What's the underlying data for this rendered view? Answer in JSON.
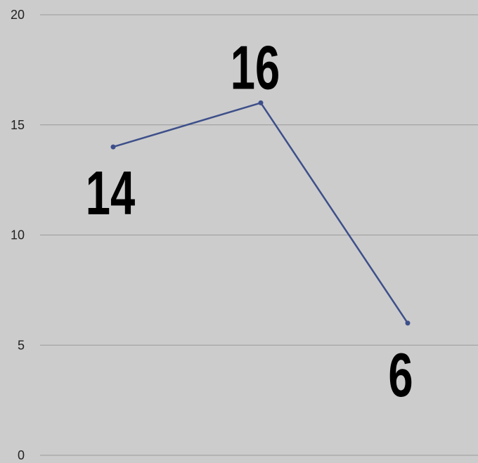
{
  "chart_data": {
    "type": "line",
    "categories": [
      "",
      "",
      ""
    ],
    "series": [
      {
        "values": [
          14,
          16,
          6
        ]
      }
    ],
    "data_labels": [
      "14",
      "16",
      "6"
    ],
    "ylim": [
      0,
      20
    ],
    "yticks": [
      "0",
      "5",
      "10",
      "15",
      "20"
    ],
    "grid": true,
    "legend": "none",
    "colors": {
      "line": "#3d4f8a",
      "background": "#cccccc",
      "grid": "#9a9a9a",
      "text": "#222222"
    }
  }
}
